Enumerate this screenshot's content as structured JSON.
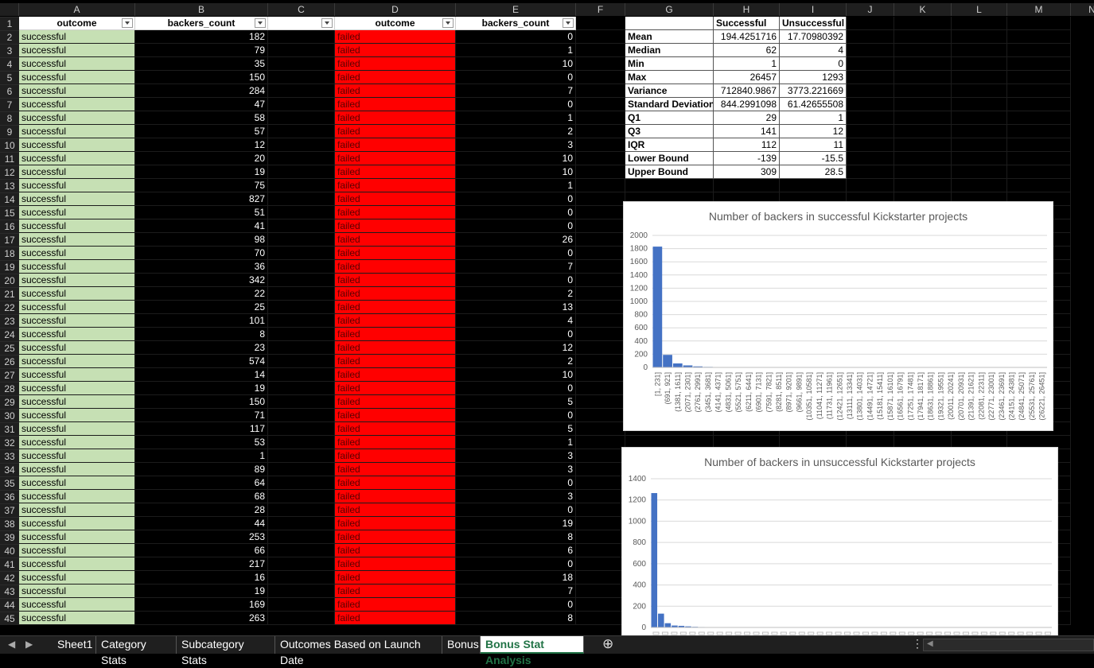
{
  "columns": [
    "A",
    "B",
    "C",
    "D",
    "E",
    "F",
    "G",
    "H",
    "I",
    "J",
    "K",
    "L",
    "M",
    "N"
  ],
  "rows": [
    1,
    2,
    3,
    4,
    5,
    6,
    7,
    8,
    9,
    10,
    11,
    12,
    13,
    14,
    15,
    16,
    17,
    18,
    19,
    20,
    21,
    22,
    23,
    24,
    25,
    26,
    27,
    28,
    29,
    30,
    31,
    32,
    33,
    34,
    35,
    36,
    37,
    38,
    39,
    40,
    41,
    42,
    43,
    44,
    45
  ],
  "headers": {
    "a": "outcome",
    "b": "backers_count",
    "d": "outcome",
    "e": "backers_count"
  },
  "successful_label": "successful",
  "failed_label": "failed",
  "successful_backers": [
    182,
    79,
    35,
    150,
    284,
    47,
    58,
    57,
    12,
    20,
    19,
    75,
    827,
    51,
    41,
    98,
    70,
    36,
    342,
    22,
    25,
    101,
    8,
    23,
    574,
    14,
    19,
    150,
    71,
    117,
    53,
    1,
    89,
    64,
    68,
    28,
    44,
    253,
    66,
    217,
    16,
    19,
    169,
    263
  ],
  "failed_backers": [
    0,
    1,
    10,
    0,
    7,
    0,
    1,
    2,
    3,
    10,
    10,
    1,
    0,
    0,
    0,
    26,
    0,
    7,
    0,
    2,
    13,
    4,
    0,
    12,
    2,
    10,
    0,
    5,
    0,
    5,
    1,
    3,
    3,
    0,
    3,
    0,
    19,
    8,
    6,
    0,
    18,
    7,
    0,
    8
  ],
  "stats": {
    "header_successful": "Successful",
    "header_unsuccessful": "Unsuccessful",
    "rows": [
      {
        "label": "Mean",
        "s": "194.4251716",
        "u": "17.70980392"
      },
      {
        "label": "Median",
        "s": "62",
        "u": "4"
      },
      {
        "label": "Min",
        "s": "1",
        "u": "0"
      },
      {
        "label": "Max",
        "s": "26457",
        "u": "1293"
      },
      {
        "label": "Variance",
        "s": "712840.9867",
        "u": "3773.221669"
      },
      {
        "label": "Standard Deviation",
        "s": "844.2991098",
        "u": "61.42655508"
      },
      {
        "label": "Q1",
        "s": "29",
        "u": "1"
      },
      {
        "label": "Q3",
        "s": "141",
        "u": "12"
      },
      {
        "label": "IQR",
        "s": "112",
        "u": "11"
      },
      {
        "label": "Lower Bound",
        "s": "-139",
        "u": "-15.5"
      },
      {
        "label": "Upper Bound",
        "s": "309",
        "u": "28.5"
      }
    ]
  },
  "chart_data": [
    {
      "type": "bar",
      "title": "Number of backers in successful Kickstarter projects",
      "ylim": [
        0,
        2000
      ],
      "yticks": [
        0,
        200,
        400,
        600,
        800,
        1000,
        1200,
        1400,
        1600,
        1800,
        2000
      ],
      "categories": [
        "[1, 231]",
        "(691, 921]",
        "(1381, 1611]",
        "(2071, 2301]",
        "(2761, 2991]",
        "(3451, 3681]",
        "(4141, 4371]",
        "(4831, 5061]",
        "(5521, 5751]",
        "(6211, 6441]",
        "(6901, 7131]",
        "(7591, 7821]",
        "(8281, 8511]",
        "(8971, 9201]",
        "(9661, 9891]",
        "(10351, 10581]",
        "(11041, 11271]",
        "(11731, 11961]",
        "(12421, 12651]",
        "(13111, 13341]",
        "(13801, 14031]",
        "(14491, 14721]",
        "(15181, 15411]",
        "(15871, 16101]",
        "(16561, 16791]",
        "(17251, 17481]",
        "(17941, 18171]",
        "(18631, 18861]",
        "(19321, 19551]",
        "(20011, 20241]",
        "(20701, 20931]",
        "(21391, 21621]",
        "(22081, 22311]",
        "(22771, 23001]",
        "(23461, 23691]",
        "(24151, 24381]",
        "(24841, 25071]",
        "(25531, 25761]",
        "(26221, 26451]"
      ],
      "values": [
        1830,
        190,
        60,
        30,
        15,
        8,
        5,
        3,
        2,
        2,
        1,
        1,
        1,
        1,
        0,
        0,
        0,
        0,
        0,
        0,
        0,
        0,
        0,
        0,
        0,
        0,
        0,
        0,
        0,
        0,
        0,
        0,
        0,
        0,
        0,
        0,
        0,
        0,
        1
      ],
      "grid": true
    },
    {
      "type": "bar",
      "title": "Number of backers in unsuccessful Kickstarter projects",
      "ylim": [
        0,
        1400
      ],
      "yticks": [
        0,
        200,
        400,
        600,
        800,
        1000,
        1200,
        1400
      ],
      "values": [
        1265,
        130,
        40,
        18,
        15,
        10,
        6,
        4,
        3,
        2,
        1,
        1,
        1,
        0,
        0,
        0,
        0,
        0,
        0,
        0,
        0,
        0,
        0,
        0,
        0,
        0,
        0,
        0,
        0,
        0,
        0,
        0,
        0,
        0,
        0,
        0,
        0,
        0,
        0,
        0,
        0,
        0,
        0,
        0,
        0,
        0,
        0,
        0,
        0,
        0,
        0,
        0,
        0,
        0,
        0,
        0,
        0,
        0,
        1
      ],
      "grid": true
    }
  ],
  "tabs": [
    "Sheet1",
    "Category Stats",
    "Subcategory Stats",
    "Outcomes Based on Launch Date",
    "Bonus",
    "Bonus Stat Analysis"
  ],
  "active_tab": "Bonus Stat Analysis"
}
